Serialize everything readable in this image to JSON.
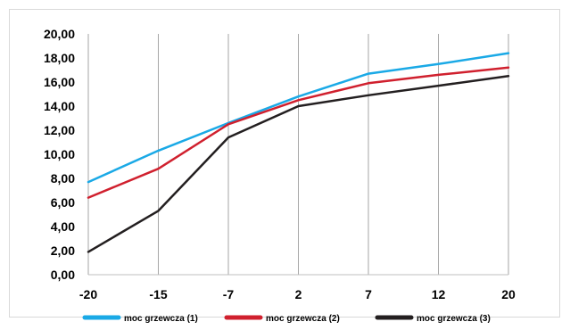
{
  "chart_data": {
    "type": "line",
    "title": "",
    "xlabel": "",
    "ylabel": "",
    "categories": [
      "-20",
      "-15",
      "-7",
      "2",
      "7",
      "12",
      "20"
    ],
    "ylim": [
      0,
      20
    ],
    "y_ticks": [
      "0,00",
      "2,00",
      "4,00",
      "6,00",
      "8,00",
      "10,00",
      "12,00",
      "14,00",
      "16,00",
      "18,00",
      "20,00"
    ],
    "grid": "vertical",
    "legend_position": "bottom",
    "series": [
      {
        "name": "moc grzewcza (1)",
        "color": "#1aa9e6",
        "values": [
          7.7,
          10.3,
          12.6,
          14.8,
          16.7,
          17.5,
          18.4
        ]
      },
      {
        "name": "moc grzewcza (2)",
        "color": "#d0202e",
        "values": [
          6.4,
          8.8,
          12.5,
          14.5,
          15.9,
          16.6,
          17.2
        ]
      },
      {
        "name": "moc grzewcza (3)",
        "color": "#231f20",
        "values": [
          1.9,
          5.3,
          11.4,
          14.0,
          14.9,
          15.7,
          16.5
        ]
      }
    ]
  }
}
